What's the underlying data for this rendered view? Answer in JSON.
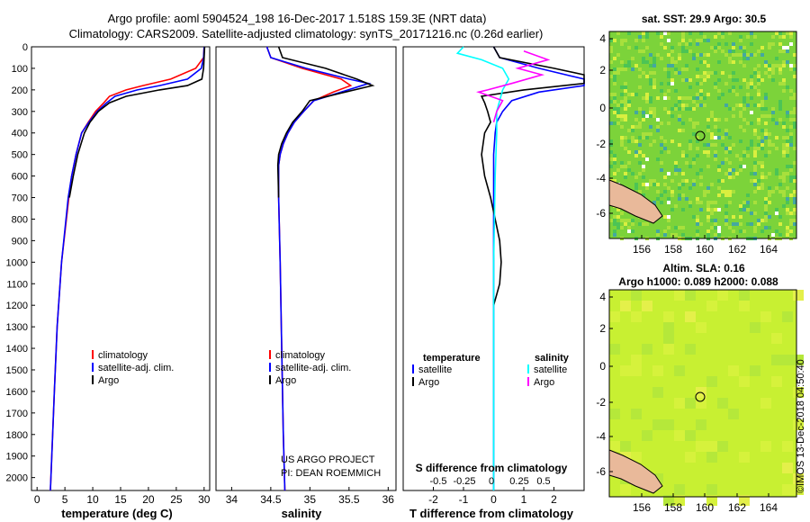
{
  "header": {
    "line1": "Argo profile: aoml 5904524_198 16-Dec-2017 1.518S 159.3E (NRT data)",
    "line2": "Climatology: CARS2009. Satellite-adjusted climatology: synTS_20171216.nc (0.26d earlier)"
  },
  "colors": {
    "climatology": "#ff0000",
    "satellite": "#0000ff",
    "argo": "#000000",
    "sat_salinity": "#00ffff",
    "argo_salinity": "#ff00ff"
  },
  "chart_data": [
    {
      "id": "temperature",
      "type": "line",
      "xlabel": "temperature (deg C)",
      "xlim": [
        -1,
        31
      ],
      "xticks": [
        0,
        5,
        10,
        15,
        20,
        25,
        30
      ],
      "ylim": [
        0,
        2060
      ],
      "yticks": [
        0,
        100,
        200,
        300,
        400,
        500,
        600,
        700,
        800,
        900,
        1000,
        1100,
        1200,
        1300,
        1400,
        1500,
        1600,
        1700,
        1800,
        1900,
        2000
      ],
      "legend": [
        "climatology",
        "satellite-adj. clim.",
        "Argo"
      ],
      "series": [
        {
          "name": "climatology",
          "color": "#ff0000",
          "x": [
            30,
            29.9,
            28.5,
            24,
            19,
            16,
            13,
            12,
            10.5,
            9.2,
            8,
            7,
            6.2,
            5.7,
            4.4,
            3.6,
            3.1,
            2.8,
            2.4
          ],
          "y": [
            0,
            50,
            100,
            150,
            180,
            200,
            230,
            260,
            300,
            350,
            400,
            500,
            600,
            700,
            1000,
            1300,
            1600,
            1800,
            2060
          ]
        },
        {
          "name": "satellite-adj. clim.",
          "color": "#0000ff",
          "x": [
            30,
            29.9,
            29.5,
            27,
            22,
            18,
            14,
            12.5,
            10.8,
            9.3,
            8,
            7,
            6.2,
            5.6,
            4.4,
            3.6,
            3.1,
            2.8,
            2.4
          ],
          "y": [
            0,
            50,
            100,
            150,
            180,
            200,
            230,
            260,
            300,
            350,
            400,
            500,
            600,
            700,
            1000,
            1300,
            1600,
            1800,
            2060
          ]
        },
        {
          "name": "Argo",
          "color": "#000000",
          "x": [
            30.1,
            30,
            29.9,
            29.6,
            27,
            22,
            16,
            13,
            11,
            9.5,
            8.5,
            7.3,
            6.5,
            5.8
          ],
          "y": [
            0,
            50,
            100,
            150,
            180,
            200,
            230,
            260,
            300,
            350,
            400,
            500,
            600,
            700
          ]
        }
      ]
    },
    {
      "id": "salinity",
      "type": "line",
      "xlabel": "salinity",
      "xlim": [
        33.8,
        36.1
      ],
      "xticks": [
        34,
        34.5,
        35,
        35.5,
        36
      ],
      "ylim": [
        0,
        2060
      ],
      "legend": [
        "climatology",
        "satellite-adj. clim.",
        "Argo"
      ],
      "annotation": [
        "US ARGO PROJECT",
        "PI: DEAN ROEMMICH"
      ],
      "series": [
        {
          "name": "climatology",
          "color": "#ff0000",
          "x": [
            34.45,
            34.5,
            34.9,
            35.4,
            35.52,
            35.3,
            35.05,
            34.92,
            34.8,
            34.72,
            34.66,
            34.62,
            34.6,
            34.6,
            34.62,
            34.64,
            34.66,
            34.68
          ],
          "y": [
            0,
            50,
            100,
            150,
            180,
            210,
            250,
            300,
            350,
            400,
            450,
            500,
            550,
            700,
            1000,
            1400,
            1800,
            2060
          ]
        },
        {
          "name": "satellite-adj. clim.",
          "color": "#0000ff",
          "x": [
            34.45,
            34.5,
            34.95,
            35.5,
            35.75,
            35.4,
            35.05,
            34.92,
            34.8,
            34.72,
            34.66,
            34.62,
            34.6,
            34.6,
            34.62,
            34.64,
            34.66,
            34.68
          ],
          "y": [
            0,
            50,
            100,
            150,
            170,
            210,
            250,
            300,
            350,
            400,
            450,
            500,
            550,
            700,
            1000,
            1400,
            1800,
            2060
          ]
        },
        {
          "name": "Argo",
          "color": "#000000",
          "x": [
            34.6,
            34.65,
            35.2,
            35.6,
            35.8,
            35.45,
            35.0,
            34.9,
            34.78,
            34.7,
            34.64,
            34.6,
            34.59,
            34.6
          ],
          "y": [
            0,
            50,
            100,
            150,
            180,
            210,
            250,
            300,
            350,
            400,
            450,
            500,
            550,
            700
          ]
        }
      ]
    },
    {
      "id": "difference",
      "type": "line",
      "xlabel": "T difference from climatology",
      "xlim": [
        -3,
        3
      ],
      "xticks": [
        -2,
        -1,
        0,
        1,
        2
      ],
      "ylim": [
        0,
        2060
      ],
      "s_axis_label": "S difference from climatology",
      "s_ticks": [
        "-0.5",
        "-0.25",
        "0",
        "0.25",
        "0.5"
      ],
      "legend_titles": [
        "temperature",
        "salinity"
      ],
      "legend": [
        "satellite",
        "Argo",
        "satellite",
        "Argo"
      ],
      "series": [
        {
          "name": "satellite",
          "color": "#0000ff",
          "x": [
            0,
            0.2,
            1.5,
            3,
            3,
            1.5,
            0.6,
            0.3,
            0.1,
            0.05,
            0,
            0,
            0,
            0
          ],
          "y": [
            0,
            50,
            100,
            150,
            180,
            210,
            250,
            300,
            350,
            400,
            500,
            700,
            1000,
            2060
          ]
        },
        {
          "name": "Argo",
          "color": "#000000",
          "x": [
            0,
            0.2,
            2,
            3,
            3,
            1,
            -0.4,
            -0.3,
            -0.2,
            -0.1,
            -0.3,
            -0.4,
            -0.3,
            -0.1,
            0.05,
            0.2,
            0.25,
            0.2,
            0.1,
            0
          ],
          "y": [
            0,
            50,
            100,
            130,
            170,
            200,
            230,
            260,
            300,
            350,
            400,
            500,
            600,
            700,
            800,
            900,
            1000,
            1100,
            1150,
            1200
          ]
        },
        {
          "name": "satellite",
          "color": "#00ffff",
          "x": [
            -1,
            -1.2,
            -0.4,
            0.3,
            0.5,
            0.3,
            0.2,
            0.1,
            0.1,
            0.05,
            0,
            0
          ],
          "y": [
            0,
            30,
            60,
            100,
            150,
            200,
            250,
            300,
            400,
            600,
            1000,
            2060
          ]
        },
        {
          "name": "Argo",
          "color": "#ff00ff",
          "x": [
            1,
            1.8,
            0.8,
            1.6,
            0.6,
            -0.2,
            -0.5,
            0.3,
            0.1,
            0
          ],
          "y": [
            20,
            60,
            100,
            130,
            170,
            200,
            210,
            250,
            300,
            350
          ]
        }
      ]
    },
    {
      "id": "sst_map",
      "type": "heatmap",
      "title": "sat. SST: 29.9 Argo: 30.5",
      "xticks": [
        156,
        158,
        160,
        162,
        164
      ],
      "yticks": [
        4,
        2,
        0,
        -2,
        -4,
        -6
      ],
      "marker": {
        "lon": 159.3,
        "lat": -1.518
      }
    },
    {
      "id": "sla_map",
      "type": "heatmap",
      "title": "Altim. SLA: 0.16",
      "subtitle": "Argo h1000: 0.089 h2000: 0.088",
      "xticks": [
        156,
        158,
        160,
        162,
        164
      ],
      "yticks": [
        4,
        2,
        0,
        -2,
        -4,
        -6
      ],
      "marker": {
        "lon": 159.3,
        "lat": -1.518
      }
    }
  ],
  "footer": "©IMOS 13-Dec-2018 04:50:40"
}
